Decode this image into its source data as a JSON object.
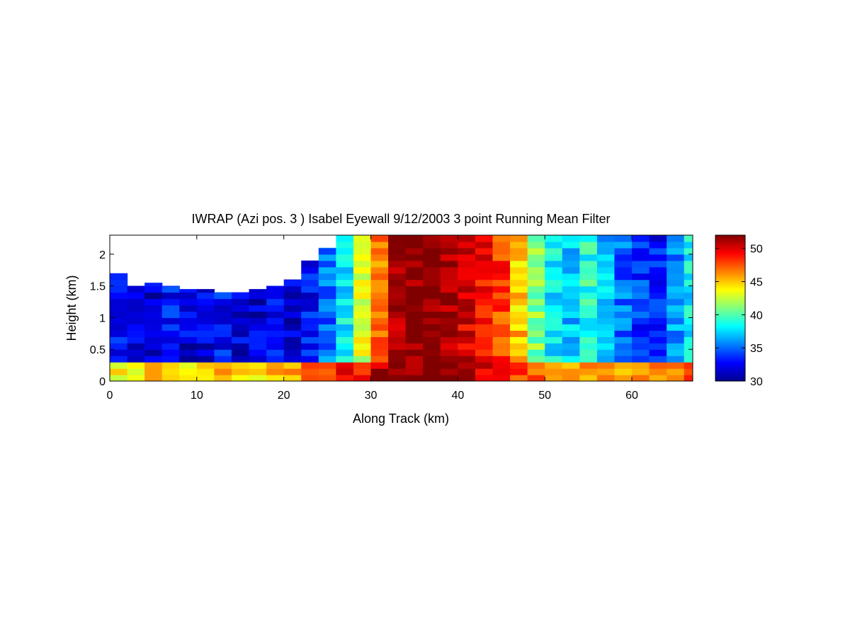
{
  "chart_data": {
    "type": "heatmap",
    "title": "IWRAP (Azi pos. 3 ) Isabel Eyewall 9/12/2003 3 point Running Mean Filter",
    "xlabel": "Along Track (km)",
    "ylabel": "Height (km)",
    "xlim": [
      0,
      67
    ],
    "ylim": [
      0,
      2.3
    ],
    "x_ticks": [
      0,
      10,
      20,
      30,
      40,
      50,
      60
    ],
    "y_ticks": [
      0,
      0.5,
      1,
      1.5,
      2
    ],
    "colorbar": {
      "range": [
        30,
        52
      ],
      "ticks": [
        30,
        35,
        40,
        45,
        50
      ],
      "colormap": "jet"
    },
    "grid": false,
    "x": [
      0,
      2,
      4,
      6,
      8,
      10,
      12,
      14,
      16,
      18,
      20,
      22,
      24,
      26,
      28,
      30,
      32,
      34,
      36,
      38,
      40,
      42,
      44,
      46,
      48,
      50,
      52,
      54,
      56,
      58,
      60,
      62,
      64,
      66
    ],
    "top_height": [
      1.7,
      1.5,
      1.55,
      1.5,
      1.45,
      1.45,
      1.4,
      1.4,
      1.45,
      1.5,
      1.6,
      1.9,
      2.1,
      2.3,
      2.3,
      2.3,
      2.3,
      2.3,
      2.3,
      2.3,
      2.3,
      2.3,
      2.3,
      2.3,
      2.3,
      2.3,
      2.3,
      2.3,
      2.3,
      2.3,
      2.3,
      2.3,
      2.3,
      2.3
    ],
    "column_value": [
      33,
      32,
      32,
      33,
      32,
      32,
      33,
      32,
      32,
      33,
      32,
      33,
      35,
      38,
      43,
      47,
      51,
      52,
      52,
      51,
      50,
      49,
      48,
      45,
      41,
      38,
      37,
      39,
      37,
      35,
      34,
      33,
      36,
      38
    ],
    "near_surface_value": [
      44,
      44,
      45,
      44,
      43,
      44,
      45,
      44,
      44,
      45,
      46,
      47,
      48,
      49,
      49,
      51,
      52,
      52,
      52,
      52,
      51,
      50,
      50,
      48,
      47,
      46,
      46,
      46,
      47,
      46,
      46,
      46,
      47,
      48
    ]
  }
}
